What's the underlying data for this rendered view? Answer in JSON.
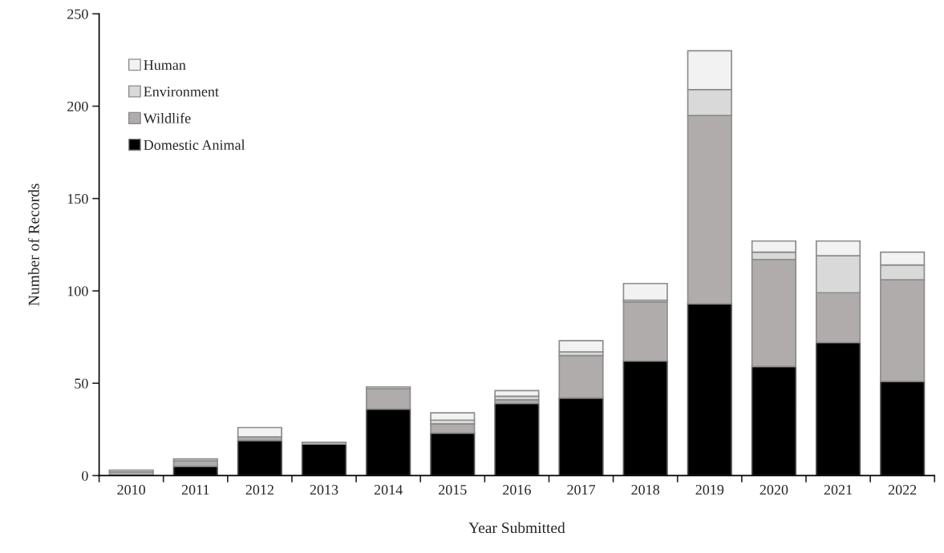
{
  "chart_data": {
    "type": "bar",
    "stacked": true,
    "xlabel": "Year Submitted",
    "ylabel": "Number of Records",
    "categories": [
      "2010",
      "2011",
      "2012",
      "2013",
      "2014",
      "2015",
      "2016",
      "2017",
      "2018",
      "2019",
      "2020",
      "2021",
      "2022"
    ],
    "series": [
      {
        "name": "Domestic Animal",
        "color": "#000000",
        "values": [
          0,
          5,
          19,
          17,
          36,
          23,
          39,
          42,
          62,
          93,
          59,
          72,
          51
        ]
      },
      {
        "name": "Wildlife",
        "color": "#b0acab",
        "values": [
          2,
          3,
          2,
          0,
          11,
          5,
          2,
          23,
          32,
          102,
          58,
          27,
          55
        ]
      },
      {
        "name": "Environment",
        "color": "#d9d9d9",
        "values": [
          1,
          1,
          0,
          1,
          1,
          2,
          2,
          2,
          1,
          14,
          4,
          20,
          8
        ]
      },
      {
        "name": "Human",
        "color": "#f2f2f2",
        "values": [
          0,
          0,
          5,
          0,
          0,
          4,
          3,
          6,
          9,
          21,
          6,
          8,
          7
        ]
      }
    ],
    "ylim": [
      0,
      250
    ],
    "yticks": [
      0,
      50,
      100,
      150,
      200,
      250
    ],
    "grid": false,
    "legend": "top left"
  }
}
